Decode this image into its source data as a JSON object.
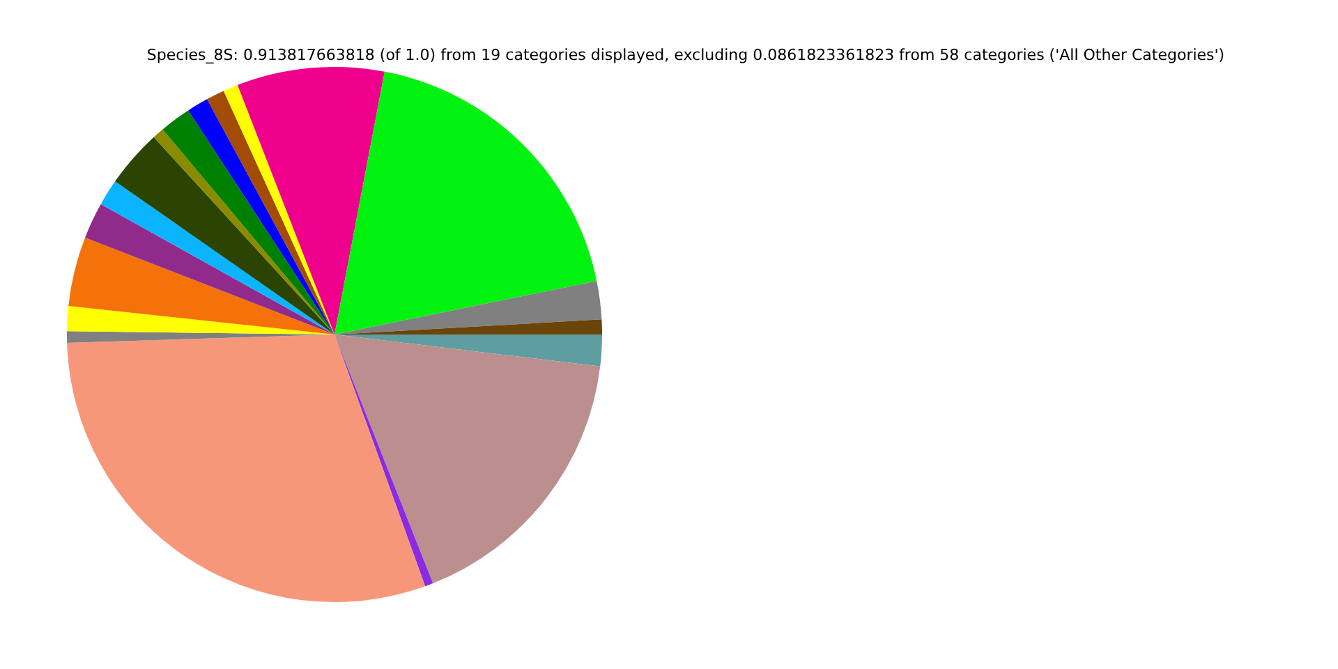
{
  "chart_data": {
    "type": "pie",
    "title": "Species_8S: 0.913817663818 (of 1.0) from 19 categories displayed, excluding 0.0861823361823 from 58 categories ('All Other Categories')",
    "categories": [
      null,
      null,
      null,
      null,
      null,
      null,
      null,
      null,
      null,
      null,
      null,
      null,
      null,
      null,
      null,
      null,
      null,
      null,
      null
    ],
    "values": [
      1.9,
      17.1,
      0.5,
      30.0,
      0.7,
      1.5,
      4.2,
      2.2,
      1.6,
      3.5,
      0.7,
      1.9,
      1.3,
      1.1,
      0.9,
      8.9,
      18.8,
      2.3,
      0.9
    ],
    "colors": [
      "#5f9ea0",
      "#bc8f8f",
      "#8a2be2",
      "#f7977a",
      "#808080",
      "#ffff00",
      "#f47209",
      "#912b8b",
      "#0bb4ff",
      "#2b4401",
      "#8b8b00",
      "#008000",
      "#0000ff",
      "#a44c06",
      "#ffff00",
      "#ee008c",
      "#00f30e",
      "#808080",
      "#6b4409"
    ],
    "legend": false
  }
}
